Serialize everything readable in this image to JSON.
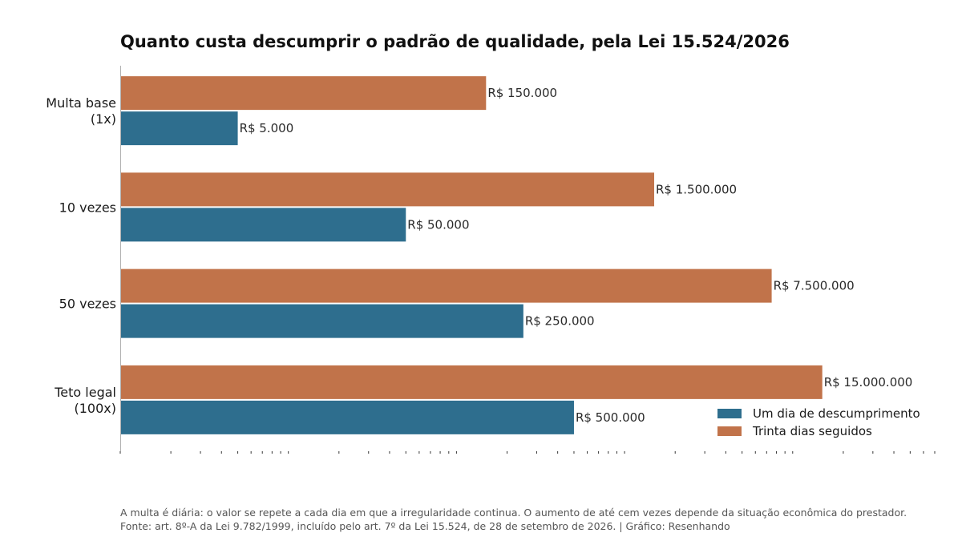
{
  "chart_data": {
    "type": "bar",
    "orientation": "horizontal",
    "title": "Quanto custa descumprir o padrão de qualidade, pela Lei 15.524/2026",
    "categories": [
      "Multa base\n(1x)",
      "10 vezes",
      "50 vezes",
      "Teto legal\n(100x)"
    ],
    "series": [
      {
        "name": "Trinta dias seguidos",
        "color": "#c1734a",
        "values": [
          150000,
          1500000,
          7500000,
          15000000
        ],
        "labels": [
          "R$ 150.000",
          "R$ 1.500.000",
          "R$ 7.500.000",
          "R$ 15.000.000"
        ]
      },
      {
        "name": "Um dia de descumprimento",
        "color": "#2e6e8e",
        "values": [
          5000,
          50000,
          250000,
          500000
        ],
        "labels": [
          "R$ 5.000",
          "R$ 50.000",
          "R$ 250.000",
          "R$ 500.000"
        ]
      }
    ],
    "x_scale": "log",
    "xlim": [
      1000,
      70000000
    ],
    "grid": false,
    "legend_position": "bottom-right"
  },
  "legend": [
    {
      "label": "Um dia de descumprimento",
      "color": "#2e6e8e"
    },
    {
      "label": "Trinta dias seguidos",
      "color": "#c1734a"
    }
  ],
  "footnote": {
    "line1": "A multa é diária: o valor se repete a cada dia em que a irregularidade continua. O aumento de até cem vezes depende da situação econômica do prestador.",
    "line2": "Fonte: art. 8º-A da Lei 9.782/1999, incluído pelo art. 7º da Lei 15.524, de 28 de setembro de 2026.  |  Gráfico: Resenhando"
  }
}
